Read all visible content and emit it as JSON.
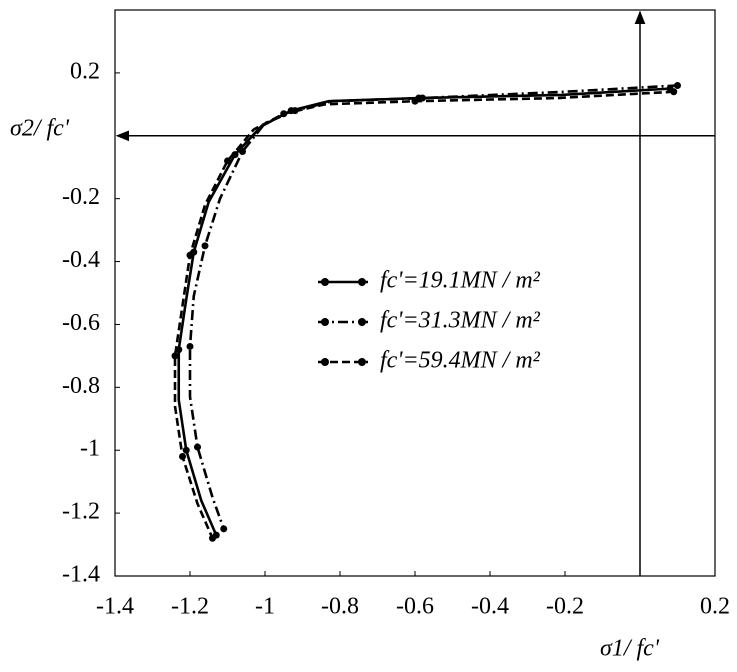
{
  "chart_data": {
    "type": "line",
    "x_label": "σ1/ fc'",
    "y_label": "σ2/ fc'",
    "xlim": [
      -1.4,
      0.2
    ],
    "xticks": [
      -1.4,
      -1.2,
      -1.0,
      -0.8,
      -0.6,
      -0.4,
      -0.2,
      0.2
    ],
    "ylim": [
      -1.4,
      0.4
    ],
    "yticks": [
      0.2,
      -0.2,
      -0.4,
      -0.6,
      -0.8,
      -1.0,
      -1.2,
      -1.4
    ],
    "grid": false,
    "series": [
      {
        "name": "fc'=19.1MN / m²",
        "color": "#000000",
        "dash": "solid",
        "x": [
          0.08,
          -0.21,
          -0.59,
          -0.83,
          -0.93,
          -1.01,
          -1.08,
          -1.15,
          -1.19,
          -1.21,
          -1.23,
          -1.23,
          -1.21,
          -1.17,
          -1.13
        ],
        "values": [
          0.15,
          0.13,
          0.12,
          0.11,
          0.08,
          0.03,
          -0.06,
          -0.21,
          -0.37,
          -0.52,
          -0.68,
          -0.84,
          -1.0,
          -1.16,
          -1.27
        ]
      },
      {
        "name": "fc'=31.3MN / m²",
        "color": "#000000",
        "dash": "dashdot",
        "x": [
          0.1,
          -0.2,
          -0.58,
          -0.82,
          -0.92,
          -1.0,
          -1.06,
          -1.12,
          -1.16,
          -1.19,
          -1.2,
          -1.2,
          -1.18,
          -1.14,
          -1.11
        ],
        "values": [
          0.16,
          0.14,
          0.12,
          0.11,
          0.08,
          0.04,
          -0.05,
          -0.2,
          -0.35,
          -0.51,
          -0.67,
          -0.83,
          -0.99,
          -1.15,
          -1.25
        ]
      },
      {
        "name": "fc'=59.4MN / m²",
        "color": "#000000",
        "dash": "dashed",
        "x": [
          0.09,
          -0.22,
          -0.6,
          -0.84,
          -0.95,
          -1.03,
          -1.1,
          -1.16,
          -1.2,
          -1.22,
          -1.24,
          -1.24,
          -1.22,
          -1.18,
          -1.14
        ],
        "values": [
          0.14,
          0.12,
          0.11,
          0.1,
          0.07,
          0.02,
          -0.08,
          -0.22,
          -0.38,
          -0.54,
          -0.7,
          -0.86,
          -1.02,
          -1.17,
          -1.28
        ]
      }
    ]
  }
}
